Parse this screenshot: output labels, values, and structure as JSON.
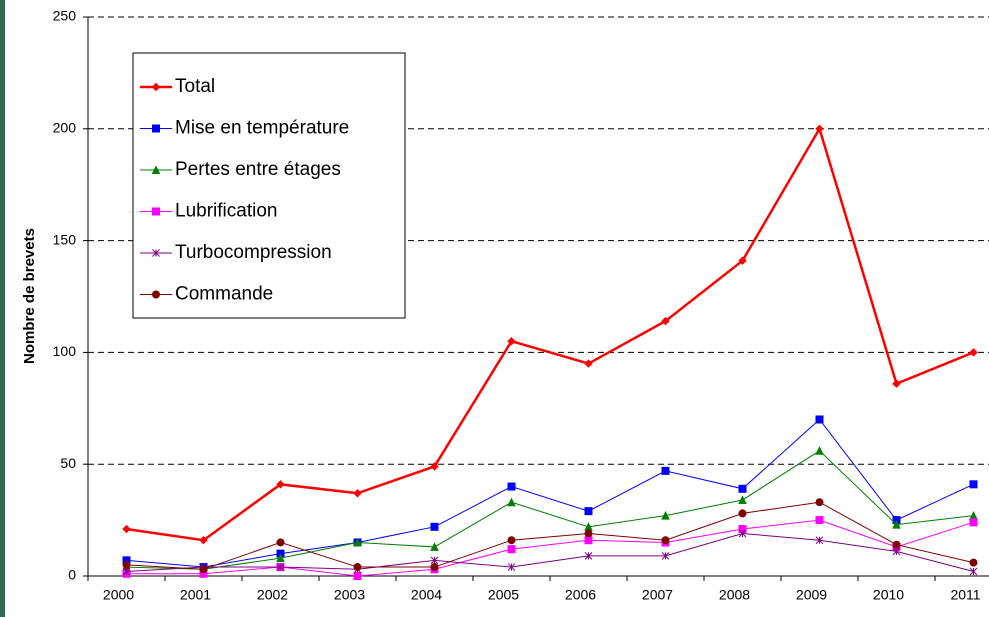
{
  "chart_data": {
    "type": "line",
    "y_label": "Nombre de brevets",
    "categories": [
      "2000",
      "2001",
      "2002",
      "2003",
      "2004",
      "2005",
      "2006",
      "2007",
      "2008",
      "2009",
      "2010",
      "2011"
    ],
    "ylim": [
      0,
      250
    ],
    "yticks": [
      0,
      50,
      100,
      150,
      200,
      250
    ],
    "grid": true,
    "legend": "upper left",
    "series": [
      {
        "name": "Total",
        "color": "#ff0000",
        "marker": "diamond",
        "values": [
          21,
          16,
          41,
          37,
          49,
          105,
          95,
          114,
          141,
          200,
          86,
          100
        ]
      },
      {
        "name": "Mise en température",
        "color": "#0000ff",
        "marker": "square",
        "values": [
          7,
          4,
          10,
          15,
          22,
          40,
          29,
          47,
          39,
          70,
          25,
          41
        ]
      },
      {
        "name": "Pertes entre étages",
        "color": "#008000",
        "marker": "triangle",
        "values": [
          4,
          3,
          8,
          15,
          13,
          33,
          22,
          27,
          34,
          56,
          23,
          27
        ]
      },
      {
        "name": "Lubrification",
        "color": "#ff00ff",
        "marker": "square",
        "values": [
          1,
          1,
          4,
          0,
          3,
          12,
          16,
          15,
          21,
          25,
          13,
          24
        ]
      },
      {
        "name": "Turbocompression",
        "color": "#800080",
        "marker": "star",
        "values": [
          2,
          4,
          4,
          3,
          7,
          4,
          9,
          9,
          19,
          16,
          11,
          2
        ]
      },
      {
        "name": "Commande",
        "color": "#800000",
        "marker": "circle",
        "values": [
          5,
          3,
          15,
          4,
          4,
          16,
          19,
          16,
          28,
          33,
          14,
          6
        ]
      }
    ]
  }
}
